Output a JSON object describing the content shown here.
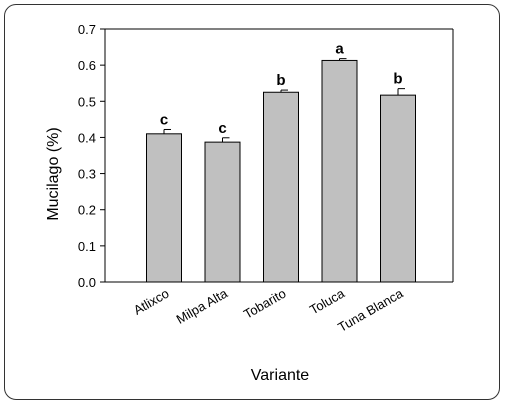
{
  "chart_data": {
    "type": "bar",
    "xlabel": "Variante",
    "ylabel": "Mucilago (%)",
    "ylim": [
      0,
      0.7
    ],
    "yticks": [
      "0.0",
      "0.1",
      "0.2",
      "0.3",
      "0.4",
      "0.5",
      "0.6",
      "0.7"
    ],
    "categories": [
      "Atlixco",
      "Milpa Alta",
      "Tobarito",
      "Toluca",
      "Tuna Blanca"
    ],
    "values": [
      0.41,
      0.387,
      0.525,
      0.613,
      0.517
    ],
    "errors": [
      0.012,
      0.012,
      0.006,
      0.005,
      0.018
    ],
    "letters": [
      "c",
      "c",
      "b",
      "a",
      "b"
    ],
    "bar_color": "#c0c0c0",
    "grid": false
  }
}
